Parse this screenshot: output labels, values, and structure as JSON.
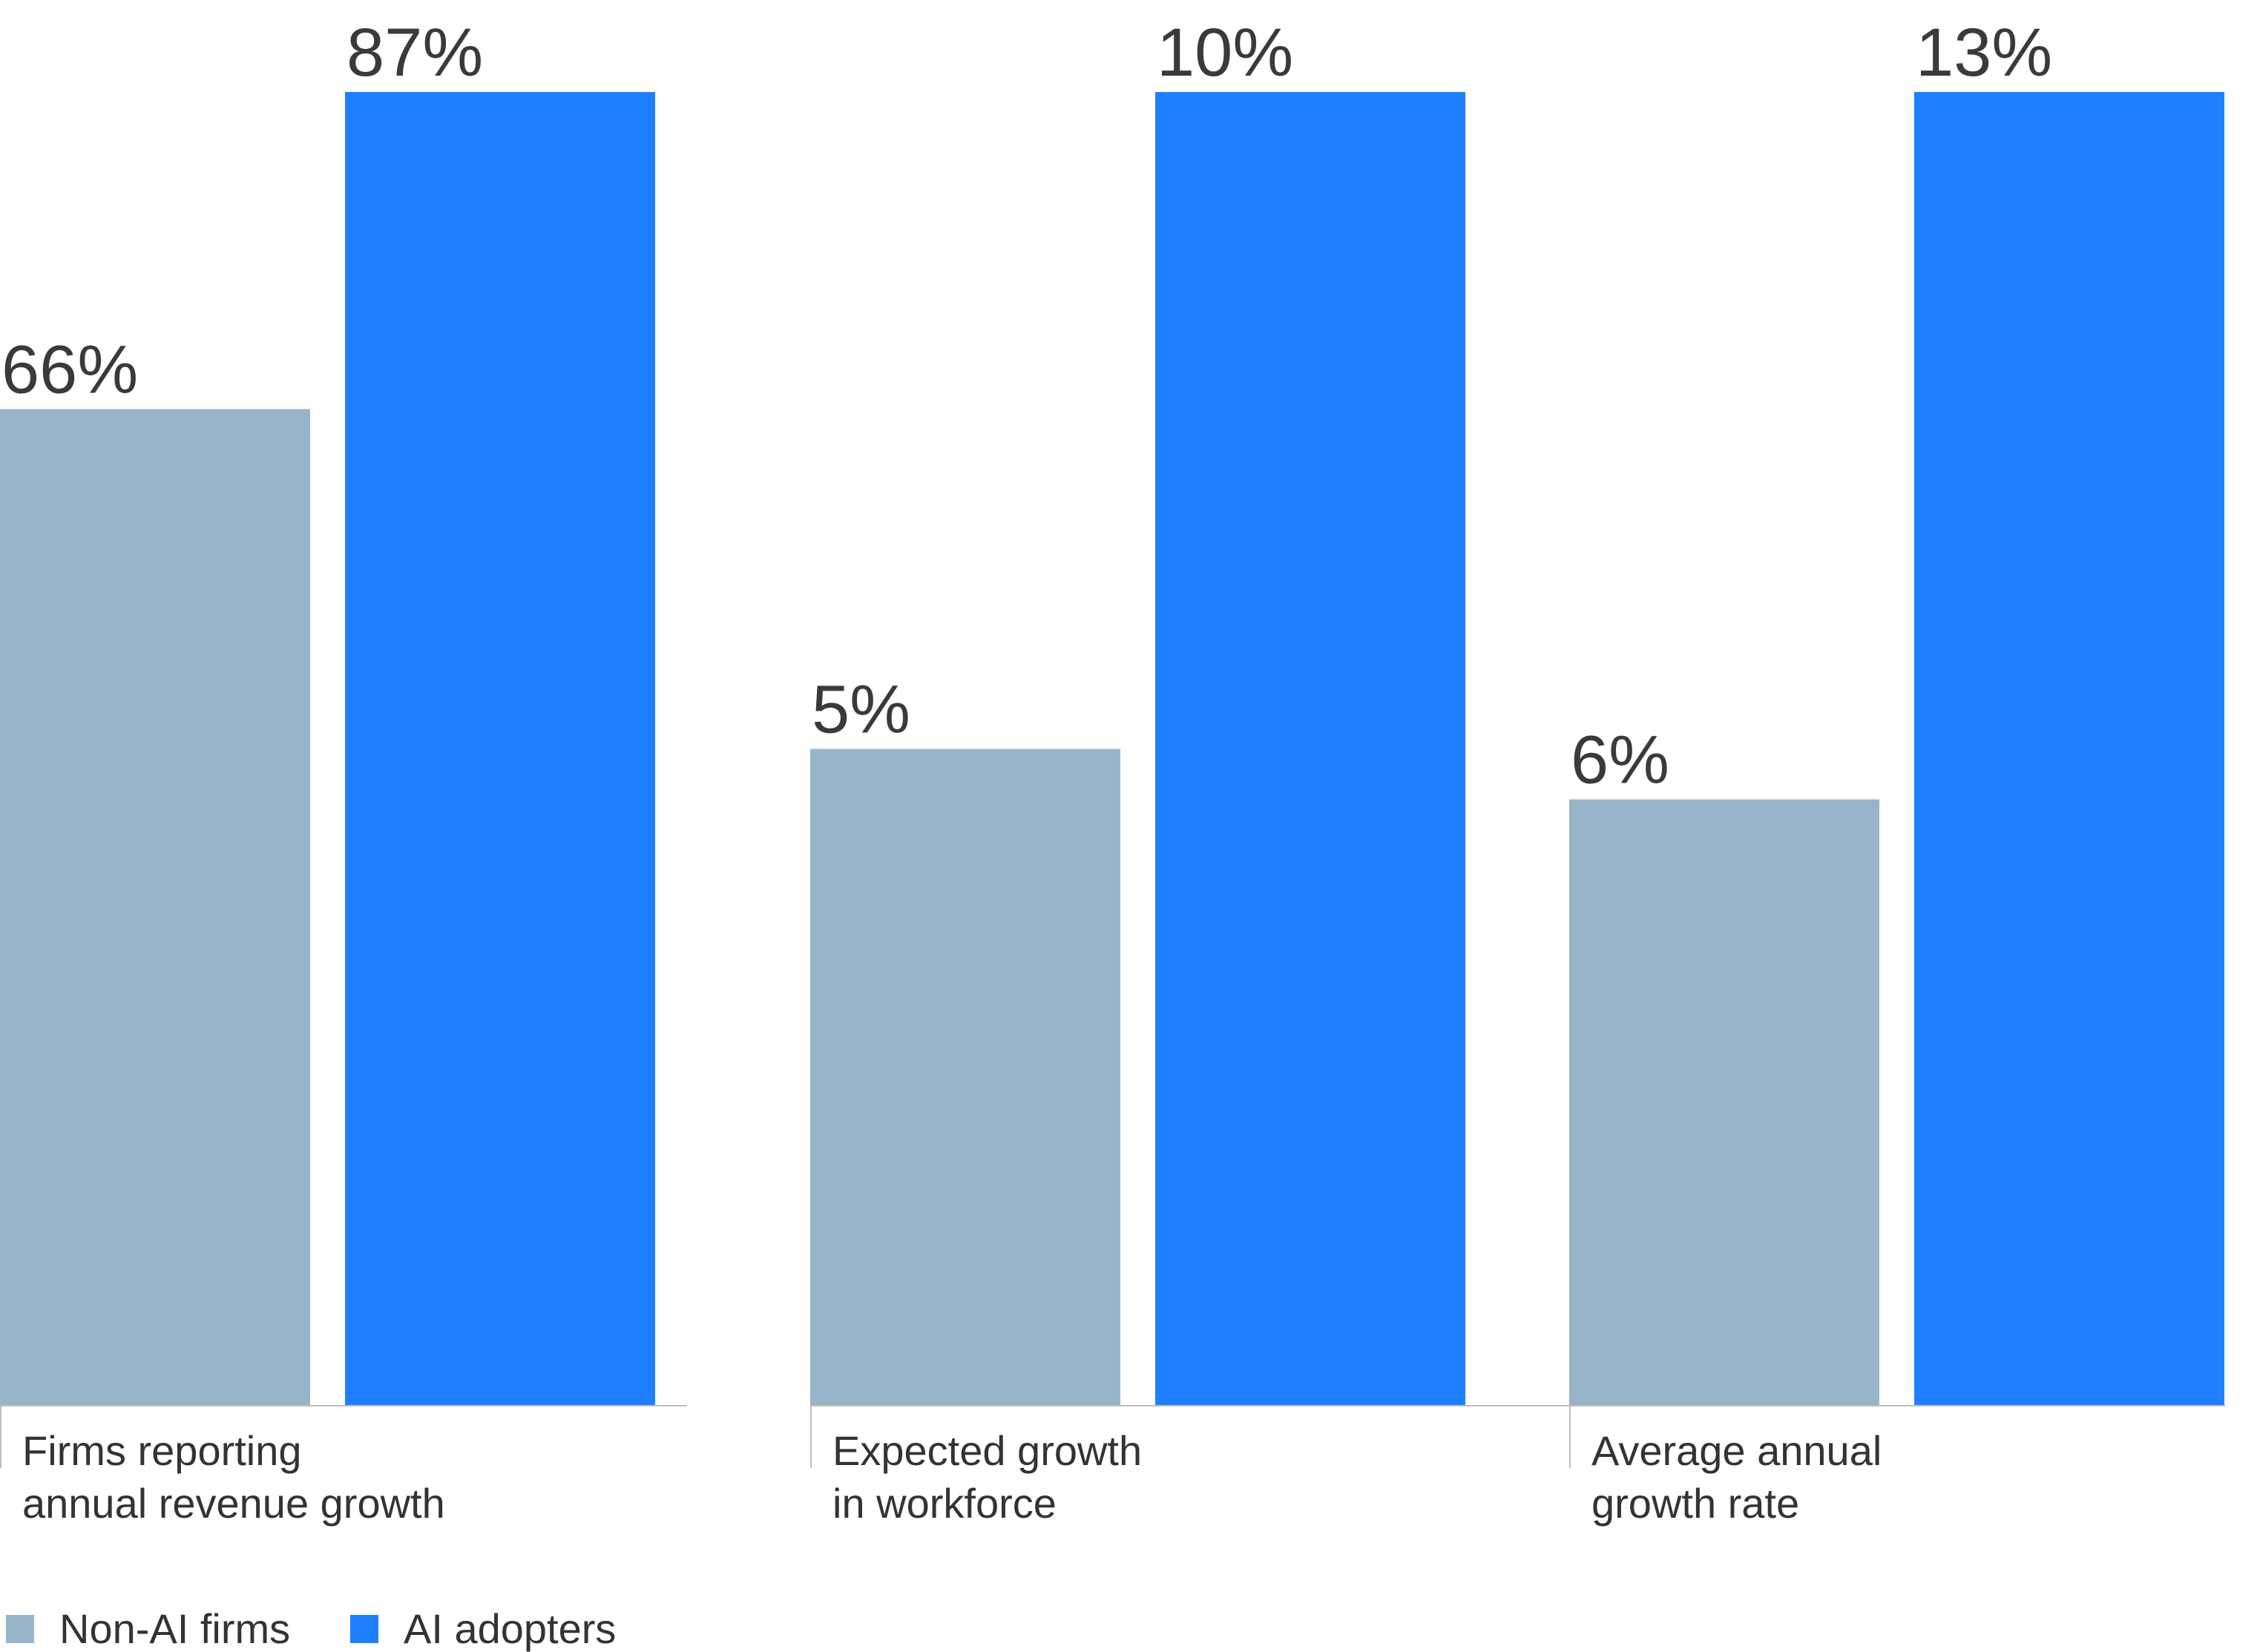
{
  "chart_data": {
    "type": "bar",
    "groups": [
      {
        "category_lines": [
          "Firms reporting",
          "annual revenue growth"
        ],
        "values": [
          66,
          87
        ],
        "labels": [
          "66%",
          "87%"
        ]
      },
      {
        "category_lines": [
          "Expected growth",
          "in workforce"
        ],
        "values": [
          5,
          10
        ],
        "labels": [
          "5%",
          "10%"
        ]
      },
      {
        "category_lines": [
          "Average annual",
          "growth rate"
        ],
        "values": [
          6,
          13
        ],
        "labels": [
          "6%",
          "13%"
        ]
      }
    ],
    "series": [
      {
        "name": "Non-AI firms",
        "color": "#98b4c8"
      },
      {
        "name": "AI adopters",
        "color": "#1f80ff"
      }
    ],
    "legend": "bottom-left",
    "grid": false
  }
}
